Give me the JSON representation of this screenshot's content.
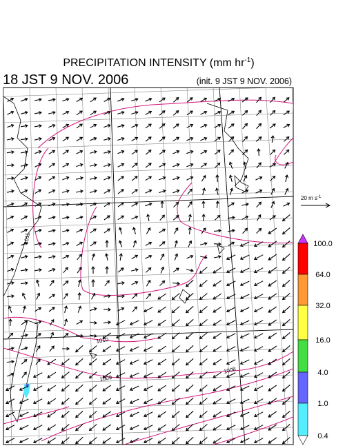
{
  "header": {
    "title": {
      "text": "PRECIPITATION INTENSITY (mm hr",
      "superscript": "-1",
      "suffix": ")"
    },
    "valid_time": "18 JST 9 NOV. 2006",
    "init_time": "(init. 9 JST 9 NOV. 2006)"
  },
  "reference_vector": {
    "text": "20 m s",
    "superscript": "-1"
  },
  "contour_labels": [
    "1011",
    "1010",
    "1009",
    "1008"
  ],
  "colorbar": {
    "levels": [
      "100.0",
      "64.0",
      "32.0",
      "16.0",
      "4.0",
      "1.0",
      "0.4"
    ]
  }
}
